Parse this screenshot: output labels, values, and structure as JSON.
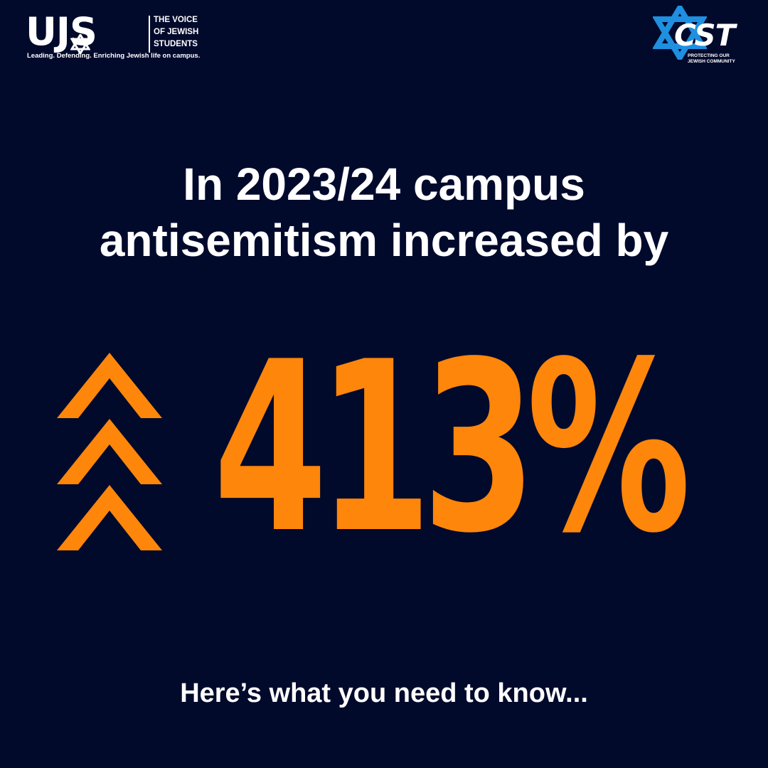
{
  "colors": {
    "background": "#020a2c",
    "accent": "#fe860b",
    "text": "#ffffff",
    "cst_star": "#1f8fe0"
  },
  "logos": {
    "ujs": {
      "mark": "UJS",
      "voice_lines": [
        "THE VOICE",
        "OF JEWISH",
        "STUDENTS"
      ],
      "tagline": "Leading. Defending. Enriching Jewish life on campus.",
      "icon": "star-of-david-icon"
    },
    "cst": {
      "mark": "CST",
      "tagline_lines": [
        "PROTECTING OUR",
        "JEWISH COMMUNITY"
      ],
      "icon": "star-of-david-icon"
    }
  },
  "headline": {
    "lines": [
      "In 2023/24 campus",
      "antisemitism increased by"
    ]
  },
  "stat": {
    "value": "413%",
    "icon": "triple-chevron-up-icon"
  },
  "footer": {
    "text": "Here’s what you need to know..."
  }
}
